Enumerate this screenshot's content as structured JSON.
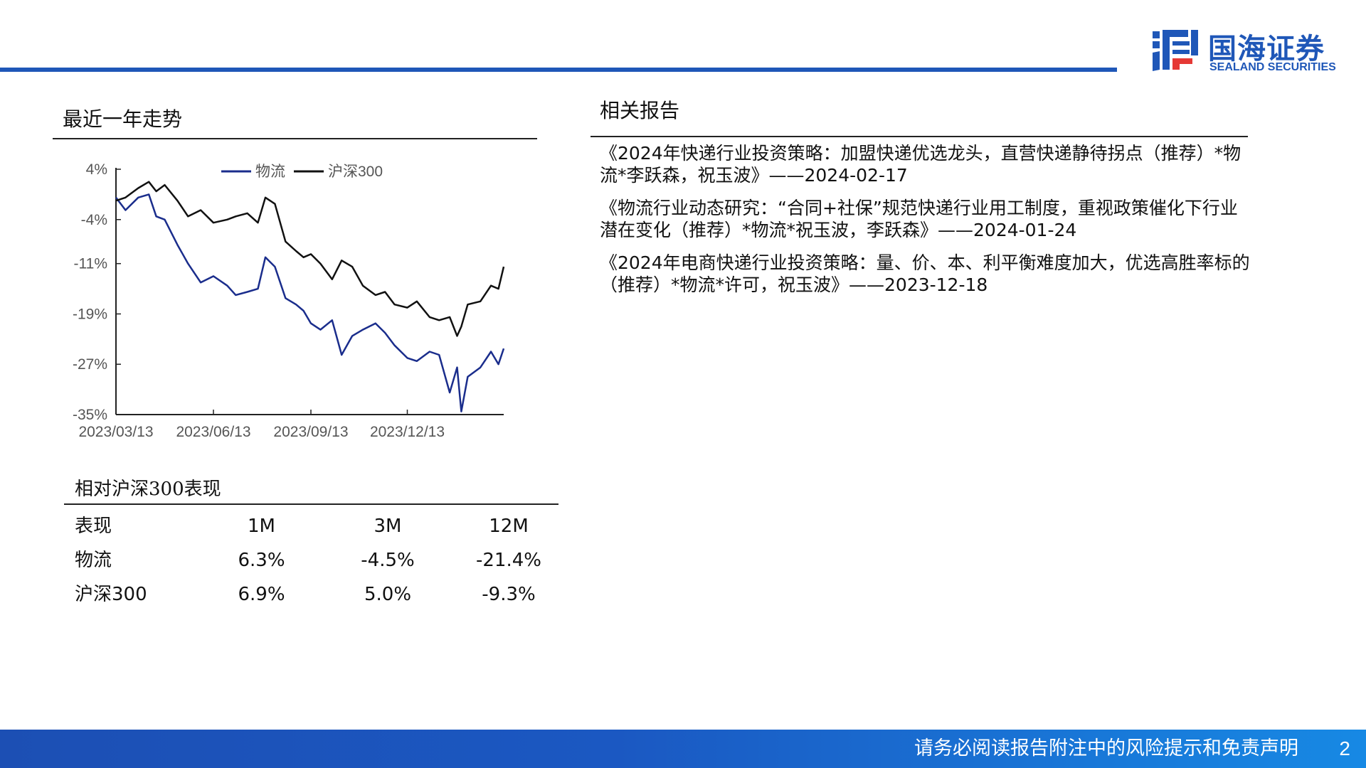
{
  "brand": {
    "name_cn": "国海证券",
    "name_en": "SEALAND SECURITIES",
    "color": "#1f57b8",
    "icon": "sealand-logo-icon"
  },
  "trend": {
    "title": "最近一年走势"
  },
  "chart_data": {
    "type": "line",
    "title": "",
    "xlabel": "",
    "ylabel": "",
    "ylim": [
      -35,
      4
    ],
    "yticks": [
      4,
      -4,
      -11,
      -19,
      -27,
      -35
    ],
    "ytick_labels": [
      "4%",
      "-4%",
      "-11%",
      "-19%",
      "-27%",
      "-35%"
    ],
    "xticks": [
      "2023/03/13",
      "2023/06/13",
      "2023/09/13",
      "2023/12/13"
    ],
    "legend": "top",
    "grid": false,
    "x": [
      "2023/03/13",
      "2023/03/22",
      "2023/04/03",
      "2023/04/13",
      "2023/04/20",
      "2023/04/28",
      "2023/05/10",
      "2023/05/20",
      "2023/06/01",
      "2023/06/13",
      "2023/06/26",
      "2023/07/04",
      "2023/07/15",
      "2023/07/25",
      "2023/08/01",
      "2023/08/10",
      "2023/08/20",
      "2023/08/30",
      "2023/09/06",
      "2023/09/13",
      "2023/09/22",
      "2023/10/03",
      "2023/10/12",
      "2023/10/22",
      "2023/11/01",
      "2023/11/13",
      "2023/11/22",
      "2023/12/01",
      "2023/12/13",
      "2023/12/22",
      "2024/01/03",
      "2024/01/12",
      "2024/01/22",
      "2024/01/29",
      "2024/02/02",
      "2024/02/08",
      "2024/02/20",
      "2024/03/01",
      "2024/03/08",
      "2024/03/13"
    ],
    "series": [
      {
        "name": "物流",
        "color": "#1a2d8c",
        "values": [
          -0.5,
          -2.5,
          -0.5,
          0.0,
          -3.5,
          -4.0,
          -8.0,
          -11.0,
          -14.0,
          -13.0,
          -14.5,
          -16.0,
          -15.5,
          -15.0,
          -10.0,
          -11.5,
          -16.5,
          -17.5,
          -18.5,
          -20.5,
          -21.5,
          -20.0,
          -25.5,
          -22.5,
          -21.5,
          -20.5,
          -22.0,
          -24.0,
          -26.0,
          -26.5,
          -25.0,
          -25.5,
          -31.5,
          -27.5,
          -34.5,
          -29.0,
          -27.5,
          -25.0,
          -27.0,
          -24.5
        ]
      },
      {
        "name": "沪深300",
        "color": "#111111",
        "values": [
          -1.0,
          -0.5,
          1.0,
          2.0,
          0.5,
          1.5,
          -1.0,
          -3.5,
          -2.5,
          -4.5,
          -4.0,
          -3.5,
          -3.0,
          -4.5,
          -0.5,
          -1.5,
          -7.5,
          -9.0,
          -10.0,
          -9.5,
          -11.0,
          -13.5,
          -10.5,
          -11.5,
          -14.5,
          -16.0,
          -15.5,
          -17.5,
          -18.0,
          -17.0,
          -19.5,
          -20.0,
          -19.5,
          -22.5,
          -21.0,
          -17.5,
          -17.0,
          -14.5,
          -15.0,
          -11.5
        ]
      }
    ]
  },
  "performance": {
    "title": "相对沪深300表现",
    "headers": [
      "表现",
      "1M",
      "3M",
      "12M"
    ],
    "rows": [
      [
        "物流",
        "6.3%",
        "-4.5%",
        "-21.4%"
      ],
      [
        "沪深300",
        "6.9%",
        "5.0%",
        "-9.3%"
      ]
    ]
  },
  "related": {
    "title": "相关报告",
    "items": [
      "《2024年快递行业投资策略：加盟快递优选龙头，直营快递静待拐点（推荐）*物流*李跃森，祝玉波》——2024-02-17",
      "《物流行业动态研究：“合同+社保”规范快递行业用工制度，重视政策催化下行业潜在变化（推荐）*物流*祝玉波，李跃森》——2024-01-24",
      "《2024年电商快递行业投资策略：量、价、本、利平衡难度加大，优选高胜率标的（推荐）*物流*许可，祝玉波》——2023-12-18"
    ]
  },
  "footer": {
    "disclaimer": "请务必阅读报告附注中的风险提示和免责声明",
    "page": "2"
  }
}
